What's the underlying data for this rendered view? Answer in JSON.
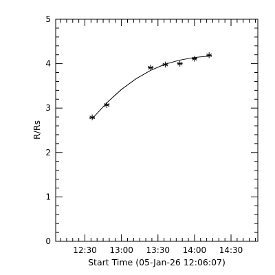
{
  "chart_data": {
    "type": "scatter",
    "xlabel": "Start Time (05-Jan-26 12:06:07)",
    "ylabel": "R/Rs",
    "xlim": [
      "12:06",
      "14:52"
    ],
    "ylim": [
      0,
      5
    ],
    "x_ticks": [
      "12:30",
      "13:00",
      "13:30",
      "14:00",
      "14:30"
    ],
    "y_ticks": [
      "0",
      "1",
      "2",
      "3",
      "4",
      "5"
    ],
    "grid": false,
    "legend": "none",
    "series": [
      {
        "marker": "asterisk",
        "x": [
          "12:36",
          "12:48",
          "13:24",
          "13:36",
          "13:48",
          "14:00",
          "14:12"
        ],
        "y": [
          2.79,
          3.07,
          3.91,
          3.98,
          4.0,
          4.11,
          4.19
        ]
      }
    ],
    "fit": {
      "style": "line",
      "x": [
        "12:36",
        "12:48",
        "13:00",
        "13:12",
        "13:24",
        "13:36",
        "13:48",
        "14:00",
        "14:12"
      ],
      "y": [
        2.76,
        3.12,
        3.42,
        3.66,
        3.85,
        3.99,
        4.08,
        4.14,
        4.17
      ]
    }
  }
}
